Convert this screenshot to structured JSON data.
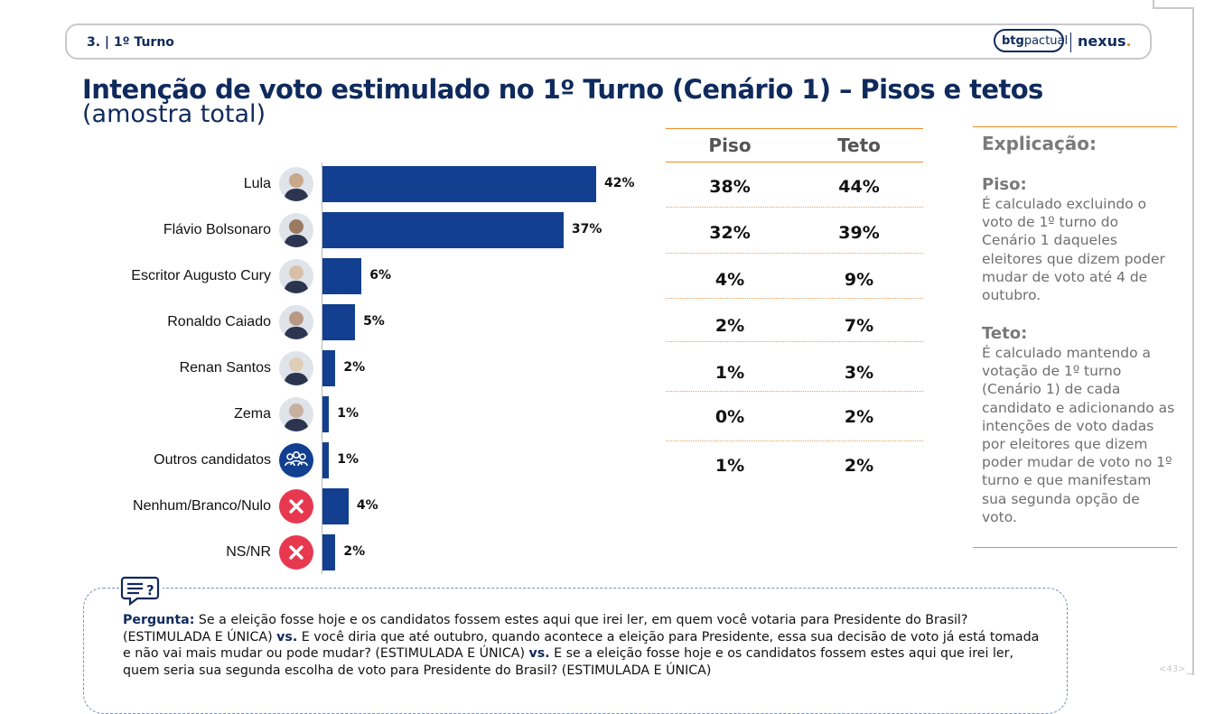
{
  "header": {
    "section": "3. | 1º Turno",
    "logo_btg_bold": "btg",
    "logo_btg_rest": "pactual",
    "logo_nexus": "nexus",
    "logo_nexus_dot": "."
  },
  "title": "Intenção de voto estimulado no 1º Turno (Cenário 1) – Pisos e tetos",
  "subtitle": "(amostra total)",
  "table": {
    "headers": [
      "Piso",
      "Teto"
    ],
    "rows": [
      {
        "piso": "38%",
        "teto": "44%"
      },
      {
        "piso": "32%",
        "teto": "39%"
      },
      {
        "piso": "4%",
        "teto": "9%"
      },
      {
        "piso": "2%",
        "teto": "7%"
      },
      {
        "piso": "1%",
        "teto": "3%"
      },
      {
        "piso": "0%",
        "teto": "2%"
      },
      {
        "piso": "1%",
        "teto": "2%"
      }
    ]
  },
  "explanation": {
    "title": "Explicação:",
    "piso_head": "Piso:",
    "piso_text": "É calculado excluindo o voto de 1º turno do Cenário 1 daqueles eleitores que dizem poder mudar de voto até 4 de outubro.",
    "teto_head": "Teto:",
    "teto_text": "É calculado mantendo a votação de 1º turno (Cenário 1) de cada candidato e adicionando as intenções de voto dadas por eleitores que dizem poder mudar de voto no 1º turno e que manifestam sua segunda opção de voto."
  },
  "question": {
    "label": "Pergunta:",
    "part1": "Se a eleição fosse hoje e os candidatos fossem estes aqui que irei ler, em quem você votaria para Presidente do Brasil? (ESTIMULADA E ÚNICA)",
    "vs1": "vs.",
    "part2": "E você diria que até outubro, quando acontece a eleição para Presidente, essa sua decisão de voto já está tomada e não vai mais mudar ou pode mudar? (ESTIMULADA E ÚNICA)",
    "vs2": "vs.",
    "part3": "E se a eleição fosse hoje e os candidatos fossem estes aqui que irei ler, quem seria sua segunda escolha de voto para Presidente do Brasil? (ESTIMULADA E ÚNICA)"
  },
  "page_number": "<43>",
  "colors": {
    "bar": "#123f8f",
    "accent": "#f08a24",
    "title": "#0f2a5c",
    "no_vote": "#e8384f"
  },
  "chart_data": {
    "type": "bar",
    "orientation": "horizontal",
    "categories": [
      "Lula",
      "Flávio Bolsonaro",
      "Escritor Augusto Cury",
      "Ronaldo Caiado",
      "Renan Santos",
      "Zema",
      "Outros candidatos",
      "Nenhum/Branco/Nulo",
      "NS/NR"
    ],
    "values": [
      42,
      37,
      6,
      5,
      2,
      1,
      1,
      4,
      2
    ],
    "value_labels": [
      "42%",
      "37%",
      "6%",
      "5%",
      "2%",
      "1%",
      "1%",
      "4%",
      "2%"
    ],
    "icons": [
      "person-photo",
      "person-photo",
      "person-photo",
      "person-photo",
      "person-photo",
      "person-photo",
      "group-icon",
      "x-icon",
      "x-icon"
    ],
    "xlim": [
      0,
      50
    ],
    "grid": false
  }
}
